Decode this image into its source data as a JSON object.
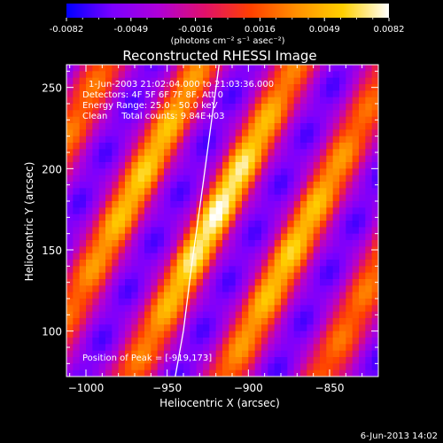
{
  "chart_data": {
    "type": "heatmap",
    "title": "Reconstructed RHESSI Image",
    "xlabel": "Heliocentric X (arcsec)",
    "ylabel": "Heliocentric Y (arcsec)",
    "xlim": [
      -1012,
      -820
    ],
    "ylim": [
      72,
      264
    ],
    "xticks": [
      -1000,
      -950,
      -900,
      -850
    ],
    "yticks": [
      100,
      150,
      200,
      250
    ],
    "colorbar": {
      "unit_label": "(photons cm⁻² s⁻¹ asec⁻²)",
      "tick_labels": [
        "-0.0082",
        "-0.0049",
        "-0.0016",
        "0.0016",
        "0.0049",
        "0.0082"
      ],
      "min": -0.0082,
      "max": 0.0082,
      "colormap": [
        "#0000ff",
        "#7b00ff",
        "#b000d8",
        "#e0106a",
        "#ff4000",
        "#ff9000",
        "#ffd000",
        "#ffffff"
      ]
    },
    "annotations": [
      "1-Jun-2003 21:02:04.000 to 21:03:36.000",
      "Detectors: 4F 5F 6F 7F 8F, Att 0",
      "Energy Range: 25.0 - 50.0 keV",
      "Clean     Total counts: 9.84E+03"
    ],
    "peak_label": "Position of Peak = [-919,173]",
    "peak": [
      -919,
      173
    ],
    "fringe_angle_deg": 62,
    "fringe_period_arcsec": 52,
    "limb_points": [
      [
        -945,
        72
      ],
      [
        -940,
        100
      ],
      [
        -935,
        140
      ],
      [
        -928,
        190
      ],
      [
        -918,
        264
      ]
    ]
  },
  "footer": {
    "date": "6-Jun-2013 14:02"
  }
}
